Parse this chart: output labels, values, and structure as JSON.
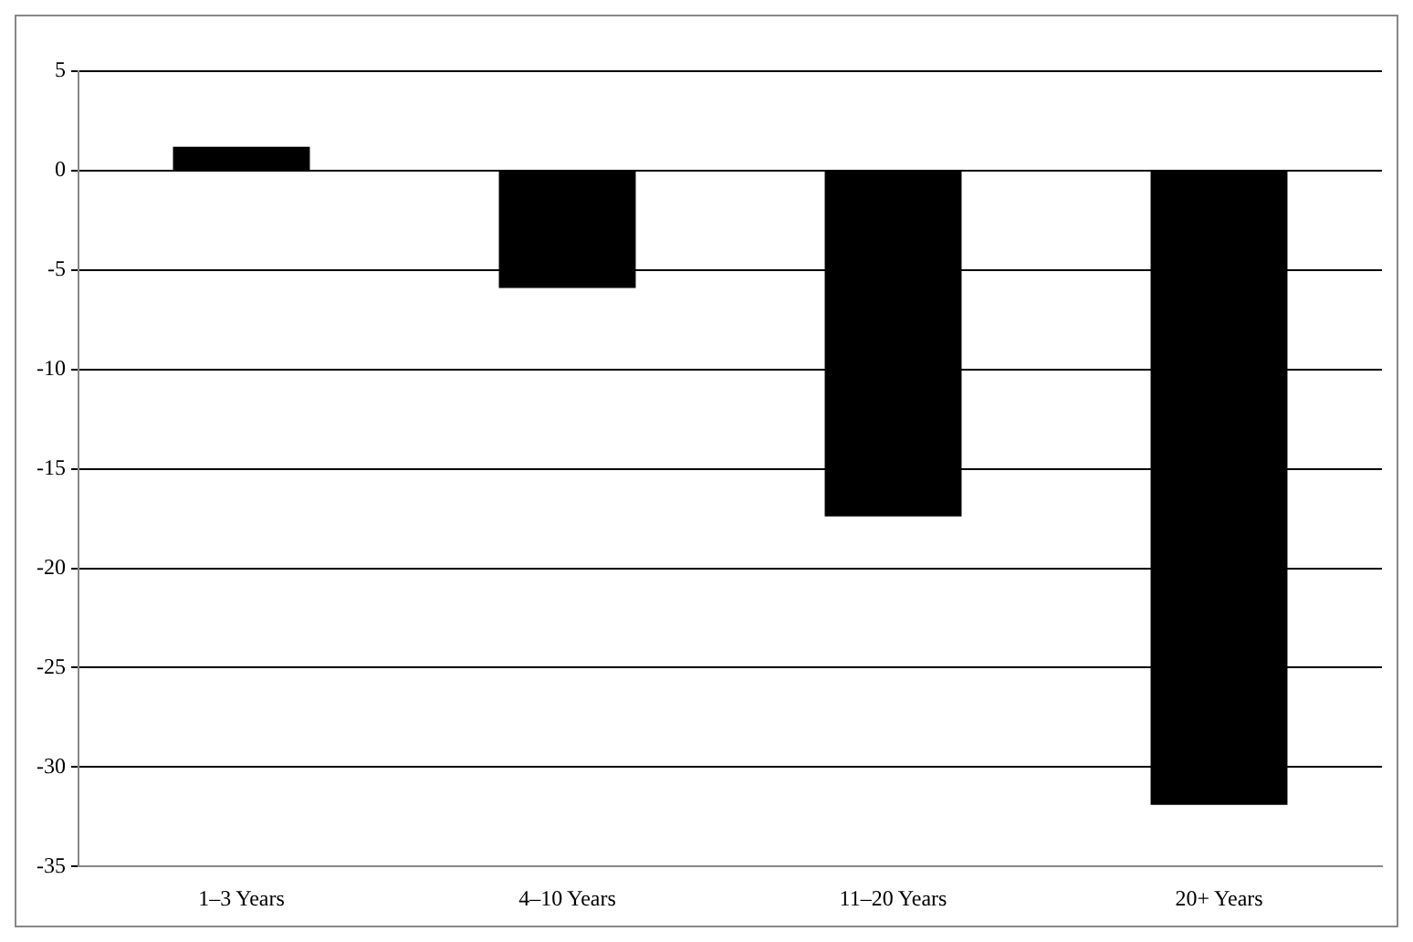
{
  "chart_data": {
    "type": "bar",
    "categories": [
      "1–3 Years",
      "4–10 Years",
      "11–20 Years",
      "20+ Years"
    ],
    "values": [
      1.2,
      -5.9,
      -17.4,
      -31.9
    ],
    "color": "#000000",
    "ylim": [
      -35,
      5
    ],
    "yticks": [
      -35,
      -30,
      -25,
      -20,
      -15,
      -10,
      -5,
      0,
      5
    ],
    "grid": "y",
    "legend": false
  }
}
